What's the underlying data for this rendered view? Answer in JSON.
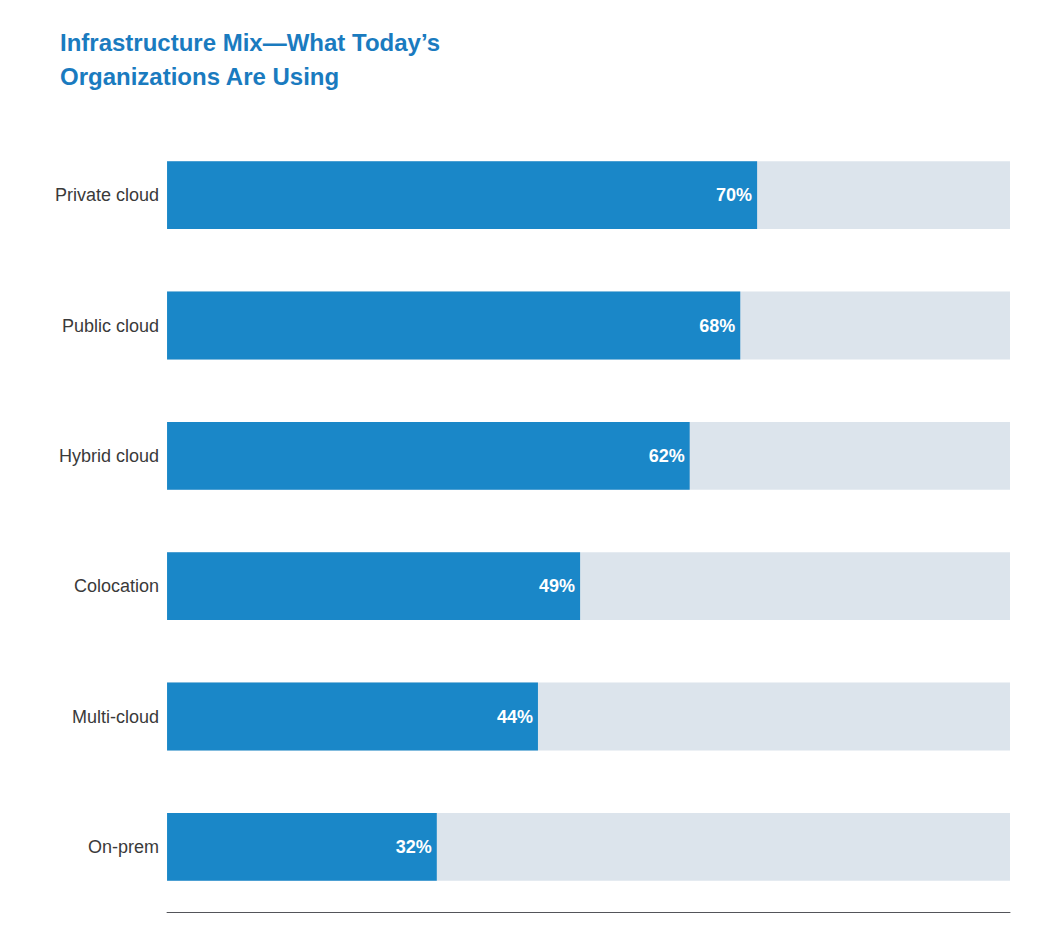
{
  "chart_data": {
    "type": "bar",
    "orientation": "horizontal",
    "title": "Infrastructure Mix—What Today’s\nOrganizations Are Using",
    "categories": [
      "Private cloud",
      "Public cloud",
      "Hybrid cloud",
      "Colocation",
      "Multi-cloud",
      "On-prem"
    ],
    "values": [
      70,
      68,
      62,
      49,
      44,
      32
    ],
    "value_labels": [
      "70%",
      "68%",
      "62%",
      "49%",
      "44%",
      "32%"
    ],
    "data_labels": true,
    "color": "#1a87c8",
    "xlim": [
      0,
      100
    ],
    "grid": false,
    "tick_labels": "y"
  }
}
